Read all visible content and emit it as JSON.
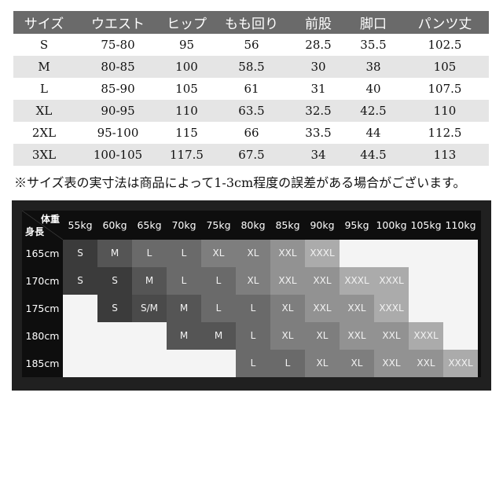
{
  "size_table": {
    "headers": [
      "サイズ",
      "ウエスト",
      "ヒップ",
      "もも回り",
      "前股",
      "脚口",
      "パンツ丈"
    ],
    "rows": [
      [
        "S",
        "75-80",
        "95",
        "56",
        "28.5",
        "35.5",
        "102.5"
      ],
      [
        "M",
        "80-85",
        "100",
        "58.5",
        "30",
        "38",
        "105"
      ],
      [
        "L",
        "85-90",
        "105",
        "61",
        "31",
        "40",
        "107.5"
      ],
      [
        "XL",
        "90-95",
        "110",
        "63.5",
        "32.5",
        "42.5",
        "110"
      ],
      [
        "2XL",
        "95-100",
        "115",
        "66",
        "33.5",
        "44",
        "112.5"
      ],
      [
        "3XL",
        "100-105",
        "117.5",
        "67.5",
        "34",
        "44.5",
        "113"
      ]
    ]
  },
  "note": "※サイズ表の実寸法は商品によって1-3cm程度の誤差がある場合がございます。",
  "fit_chart": {
    "weight_label": "体重",
    "height_label": "身長",
    "weights": [
      "55kg",
      "60kg",
      "65kg",
      "70kg",
      "75kg",
      "80kg",
      "85kg",
      "90kg",
      "95kg",
      "100kg",
      "105kg",
      "110kg"
    ],
    "heights": [
      "165cm",
      "170cm",
      "175cm",
      "180cm",
      "185cm"
    ],
    "cells": [
      [
        "S",
        "M",
        "L",
        "L",
        "XL",
        "XL",
        "XXL",
        "XXXL",
        "",
        "",
        "",
        ""
      ],
      [
        "S",
        "S",
        "M",
        "L",
        "L",
        "XL",
        "XXL",
        "XXL",
        "XXXL",
        "XXXL",
        "",
        ""
      ],
      [
        "",
        "S",
        "S/M",
        "M",
        "L",
        "L",
        "XL",
        "XXL",
        "XXL",
        "XXXL",
        "",
        ""
      ],
      [
        "",
        "",
        "",
        "M",
        "M",
        "L",
        "XL",
        "XL",
        "XXL",
        "XXL",
        "XXXL",
        ""
      ],
      [
        "",
        "",
        "",
        "",
        "",
        "L",
        "L",
        "XL",
        "XL",
        "XXL",
        "XXL",
        "XXXL"
      ]
    ],
    "colors": {
      "S": "#3b3b3b",
      "M": "#555555",
      "S/M": "#4a4a4a",
      "L": "#6a6a6a",
      "XL": "#7e7e7e",
      "XXL": "#929292",
      "XXXL": "#ababab",
      "empty": "#f4f4f4"
    }
  }
}
